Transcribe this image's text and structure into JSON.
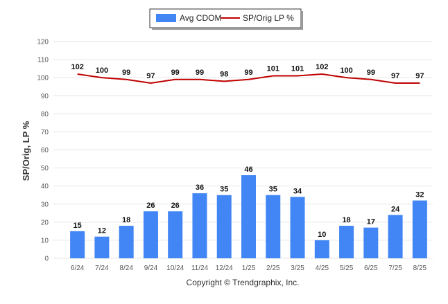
{
  "chart_data": {
    "type": "bar",
    "categories": [
      "6/24",
      "7/24",
      "8/24",
      "9/24",
      "10/24",
      "11/24",
      "12/24",
      "1/25",
      "2/25",
      "3/25",
      "4/25",
      "5/25",
      "6/25",
      "7/25",
      "8/25"
    ],
    "series": [
      {
        "name": "Avg CDOM",
        "type": "bar",
        "color": "#4285f4",
        "values": [
          15,
          12,
          18,
          26,
          26,
          36,
          35,
          46,
          35,
          34,
          10,
          18,
          17,
          24,
          32
        ]
      },
      {
        "name": "SP/Orig LP %",
        "type": "line",
        "color": "#c00000",
        "values": [
          102,
          100,
          99,
          97,
          99,
          99,
          98,
          99,
          101,
          101,
          102,
          100,
          99,
          97,
          97
        ]
      }
    ],
    "ylabel": "SP/Orig, LP %",
    "ylim": [
      0,
      120
    ],
    "yticks": [
      "0",
      "10",
      "20",
      "30",
      "40",
      "50",
      "60",
      "70",
      "80",
      "90",
      "100",
      "110",
      "120"
    ],
    "grid": true,
    "legend": "top-center"
  },
  "footer": {
    "copyright": "Copyright © Trendgraphix, Inc."
  }
}
